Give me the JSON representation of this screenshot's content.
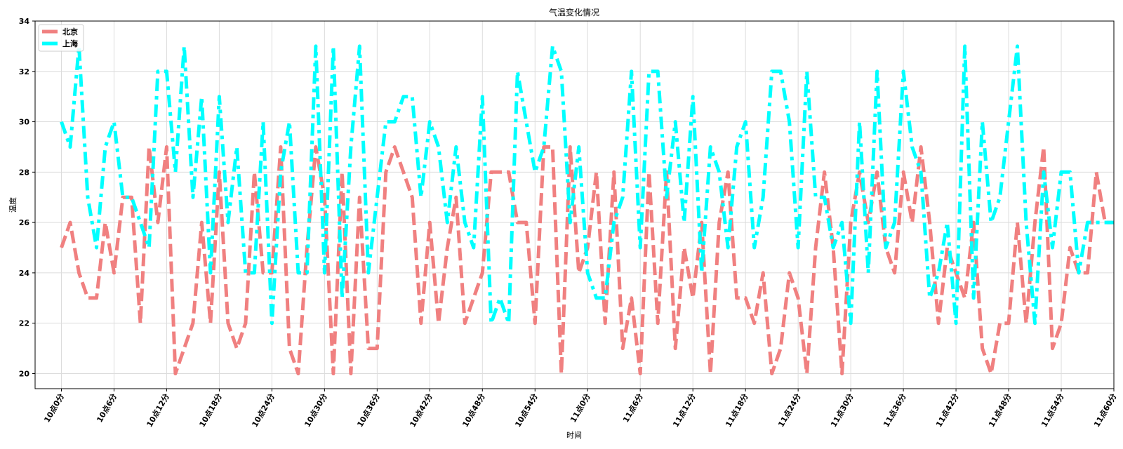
{
  "chart_data": {
    "type": "line",
    "title": "气温变化情况",
    "xlabel": "时间",
    "ylabel": "温度",
    "ylim": [
      19.4,
      34
    ],
    "yticks": [
      20,
      22,
      24,
      26,
      28,
      30,
      32,
      34
    ],
    "x_range": [
      -3,
      120
    ],
    "grid": true,
    "legend_position": "top-left",
    "x_tick_labels": [
      "10点0分",
      "10点6分",
      "10点12分",
      "10点18分",
      "10点24分",
      "10点30分",
      "10点36分",
      "10点42分",
      "10点48分",
      "10点54分",
      "11点0分",
      "11点6分",
      "11点12分",
      "11点18分",
      "11点24分",
      "11点30分",
      "11点36分",
      "11点42分",
      "11点48分",
      "11点54分",
      "11点60分"
    ],
    "x_tick_positions": [
      0,
      6,
      12,
      18,
      24,
      30,
      36,
      42,
      48,
      54,
      60,
      66,
      72,
      78,
      84,
      90,
      96,
      102,
      108,
      114,
      120
    ],
    "series": [
      {
        "name": "北京",
        "color": "#f08080",
        "dash": "dashed",
        "x": [
          0,
          1,
          2,
          3,
          4,
          5,
          6,
          7,
          8,
          9,
          10,
          11,
          12,
          13,
          14,
          15,
          16,
          17,
          18,
          19,
          20,
          21,
          22,
          23,
          24,
          25,
          26,
          27,
          28,
          29,
          30,
          31,
          32,
          33,
          34,
          35,
          36,
          37,
          38,
          39,
          40,
          41,
          42,
          43,
          44,
          45,
          46,
          47,
          48,
          49,
          50,
          51,
          52,
          53,
          54,
          55,
          56,
          57,
          58,
          59,
          60,
          61,
          62,
          63,
          64,
          65,
          66,
          67,
          68,
          69,
          70,
          71,
          72,
          73,
          74,
          75,
          76,
          77,
          78,
          79,
          80,
          81,
          82,
          83,
          84,
          85,
          86,
          87,
          88,
          89,
          90,
          91,
          92,
          93,
          94,
          95,
          96,
          97,
          98,
          99,
          100,
          101,
          102,
          103,
          104,
          105,
          106,
          107,
          108,
          109,
          110,
          111,
          112,
          113,
          114,
          115,
          116,
          117,
          118,
          119,
          120
        ],
        "values": [
          25,
          26,
          24,
          23,
          23,
          26,
          24,
          27,
          27,
          22,
          29,
          26,
          29,
          20,
          21,
          22,
          26,
          22,
          28,
          22,
          21,
          22,
          28,
          24,
          24,
          29,
          21,
          20,
          25,
          29,
          27,
          20,
          28,
          20,
          27,
          21,
          21,
          28,
          29,
          28,
          27,
          22,
          26,
          22,
          25,
          27,
          22,
          23,
          24,
          28,
          28,
          28,
          26,
          26,
          22,
          29,
          29,
          20,
          29,
          24,
          25,
          28,
          22,
          28,
          21,
          23,
          20,
          28,
          22,
          28,
          21,
          25,
          23,
          26,
          20,
          26,
          28,
          23,
          23,
          22,
          24,
          20,
          21,
          24,
          23,
          20,
          25,
          28,
          25,
          20,
          26,
          28,
          26,
          28,
          25,
          24,
          28,
          26,
          29,
          26,
          22,
          25,
          24,
          23,
          26,
          21,
          20,
          22,
          22,
          26,
          22,
          26,
          29,
          21,
          22,
          25,
          24,
          24,
          28,
          26,
          26
        ]
      },
      {
        "name": "上海",
        "color": "#00ffff",
        "dash": "dashdot",
        "x": [
          0,
          1,
          2,
          3,
          4,
          5,
          6,
          7,
          8,
          9,
          10,
          11,
          12,
          13,
          14,
          15,
          16,
          17,
          18,
          19,
          20,
          21,
          22,
          23,
          24,
          25,
          26,
          27,
          28,
          29,
          30,
          31,
          32,
          33,
          34,
          35,
          36,
          37,
          38,
          39,
          40,
          41,
          42,
          43,
          44,
          45,
          46,
          47,
          48,
          49,
          50,
          51,
          52,
          53,
          54,
          55,
          56,
          57,
          58,
          59,
          60,
          61,
          62,
          63,
          64,
          65,
          66,
          67,
          68,
          69,
          70,
          71,
          72,
          73,
          74,
          75,
          76,
          77,
          78,
          79,
          80,
          81,
          82,
          83,
          84,
          85,
          86,
          87,
          88,
          89,
          90,
          91,
          92,
          93,
          94,
          95,
          96,
          97,
          98,
          99,
          100,
          101,
          102,
          103,
          104,
          105,
          106,
          107,
          108,
          109,
          110,
          111,
          112,
          113,
          114,
          115,
          116,
          117,
          118,
          119,
          120
        ],
        "values": [
          30,
          29,
          33,
          27,
          25,
          29,
          30,
          27,
          27,
          26,
          25,
          32,
          32,
          28,
          33,
          27,
          31,
          24,
          31,
          26,
          29,
          24,
          24,
          30,
          22,
          28,
          30,
          24,
          24,
          33,
          24,
          33,
          23,
          29,
          33,
          24,
          27,
          30,
          30,
          31,
          31,
          27,
          30,
          29,
          26,
          29,
          26,
          25,
          31,
          22,
          23,
          22,
          32,
          30,
          28,
          29,
          33,
          32,
          26,
          29,
          24,
          23,
          23,
          26,
          27,
          32,
          25,
          32,
          32,
          27,
          30,
          26,
          31,
          24,
          29,
          28,
          25,
          29,
          30,
          25,
          27,
          32,
          32,
          30,
          25,
          32,
          27,
          27,
          25,
          26,
          22,
          30,
          24,
          32,
          25,
          26,
          32,
          29,
          28,
          23,
          24,
          26,
          22,
          33,
          23,
          30,
          26,
          27,
          30,
          33,
          26,
          22,
          28,
          25,
          28,
          28,
          24,
          26,
          26,
          26,
          26
        ]
      }
    ]
  }
}
